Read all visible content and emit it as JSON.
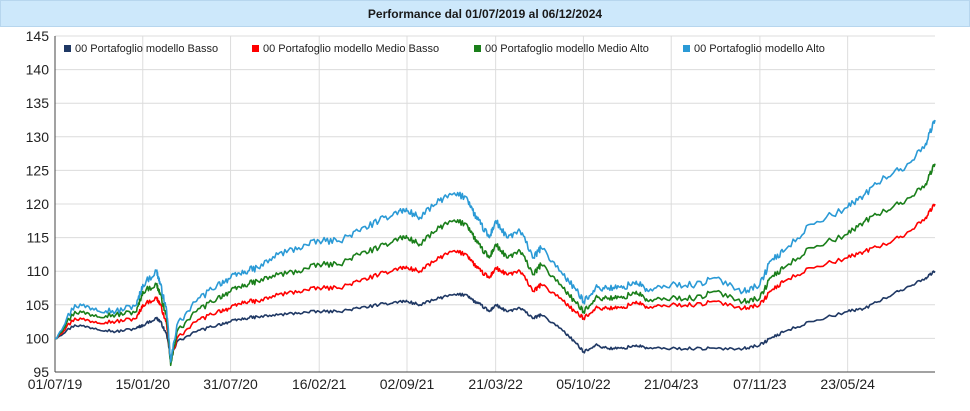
{
  "title": "Performance dal 01/07/2019 al 06/12/2024",
  "chart_data": {
    "type": "line",
    "title": "Performance dal 01/07/2019 al 06/12/2024",
    "xlabel": "",
    "ylabel": "",
    "ylim": [
      95,
      145
    ],
    "yticks": [
      95,
      100,
      105,
      110,
      115,
      120,
      125,
      130,
      135,
      140,
      145
    ],
    "xticks": [
      "01/07/19",
      "15/01/20",
      "31/07/20",
      "16/02/21",
      "02/09/21",
      "21/03/22",
      "05/10/22",
      "21/04/23",
      "07/11/23",
      "23/05/24"
    ],
    "grid": true,
    "legend_position": "top",
    "x": [
      "01/07/19",
      "15/08/19",
      "01/10/19",
      "15/11/19",
      "01/01/20",
      "15/01/20",
      "15/02/20",
      "24/02/20",
      "09/03/20",
      "18/03/20",
      "01/04/20",
      "15/05/20",
      "01/07/20",
      "31/07/20",
      "01/09/20",
      "01/10/20",
      "15/11/20",
      "01/01/21",
      "16/02/21",
      "01/04/21",
      "15/05/21",
      "01/07/21",
      "15/08/21",
      "02/09/21",
      "01/10/21",
      "15/11/21",
      "15/12/21",
      "15/01/22",
      "01/02/22",
      "15/02/22",
      "07/03/22",
      "21/03/22",
      "15/04/22",
      "15/05/22",
      "15/06/22",
      "01/07/22",
      "15/08/22",
      "15/09/22",
      "05/10/22",
      "01/11/22",
      "01/12/22",
      "01/01/23",
      "01/02/23",
      "01/03/23",
      "21/04/23",
      "15/06/23",
      "01/08/23",
      "01/10/23",
      "07/11/23",
      "01/12/23",
      "01/01/24",
      "01/03/24",
      "23/05/24",
      "01/07/24",
      "15/08/24",
      "01/10/24",
      "15/11/24",
      "06/12/24"
    ],
    "series": [
      {
        "name": "00 Portafoglio modello Basso",
        "color": "#1f3864",
        "values": [
          100,
          102,
          101.5,
          101,
          101.5,
          102,
          103,
          102.5,
          100.5,
          97,
          99.5,
          101,
          102,
          102.5,
          103,
          103.2,
          103.5,
          103.8,
          104,
          104,
          104.5,
          105,
          105.5,
          105.5,
          105,
          106,
          106.5,
          106.5,
          105.5,
          105,
          104,
          105,
          104,
          104.5,
          103,
          103.5,
          101.5,
          99.5,
          98,
          99,
          98.5,
          98.5,
          99,
          98.5,
          98.5,
          98.5,
          98.5,
          98.5,
          99,
          100,
          101,
          102.5,
          104,
          104.5,
          106,
          107.5,
          109,
          110
        ]
      },
      {
        "name": "00 Portafoglio modello Medio Basso",
        "color": "#ff0000",
        "values": [
          100,
          103,
          102.5,
          102.5,
          103,
          105,
          106,
          105,
          102,
          96.5,
          100,
          102.5,
          104,
          104.5,
          105.5,
          105.5,
          106.5,
          107,
          107.5,
          107.5,
          108.5,
          109.5,
          110.5,
          110.5,
          110,
          112,
          113,
          112.5,
          111,
          110,
          109,
          110.5,
          109.5,
          110,
          107,
          108,
          106,
          104,
          103,
          104.5,
          104.5,
          104.5,
          105.5,
          104.5,
          105,
          105,
          105.5,
          104.5,
          105,
          107,
          108.5,
          110.5,
          112,
          113,
          114,
          115.5,
          118,
          120
        ]
      },
      {
        "name": "00 Portafoglio modello Medio Alto",
        "color": "#1a7f1a",
        "values": [
          100,
          104,
          103.5,
          103.5,
          104,
          107,
          108,
          106.5,
          103,
          96,
          101,
          104,
          106,
          107,
          108,
          108.5,
          109.5,
          110,
          111,
          111,
          112.5,
          113.5,
          115,
          115,
          114,
          116.5,
          117.5,
          117,
          115,
          113.5,
          112,
          114,
          112,
          113,
          109.5,
          111,
          108,
          105.5,
          104,
          106,
          106,
          106,
          107,
          105.5,
          106,
          106,
          107,
          105.5,
          106,
          109,
          110.5,
          113.5,
          115.5,
          117.5,
          119,
          120.5,
          123,
          126
        ]
      },
      {
        "name": "00 Portafoglio modello Alto",
        "color": "#2b9ad6",
        "values": [
          100,
          105,
          104.5,
          104,
          105,
          108,
          110,
          108,
          104,
          96.5,
          102,
          105.5,
          108,
          109,
          110,
          110.5,
          112.5,
          113.5,
          114.5,
          114.5,
          116,
          117.5,
          119,
          119,
          118,
          120.5,
          121.5,
          121,
          118.5,
          117,
          115,
          117.5,
          115,
          116,
          112,
          113.5,
          110,
          107.5,
          105.5,
          107.5,
          107.5,
          107.5,
          108.5,
          107,
          108,
          108,
          109,
          107,
          108,
          111.5,
          113,
          117,
          119.5,
          121.5,
          124,
          125.5,
          129,
          132.5
        ]
      }
    ]
  }
}
